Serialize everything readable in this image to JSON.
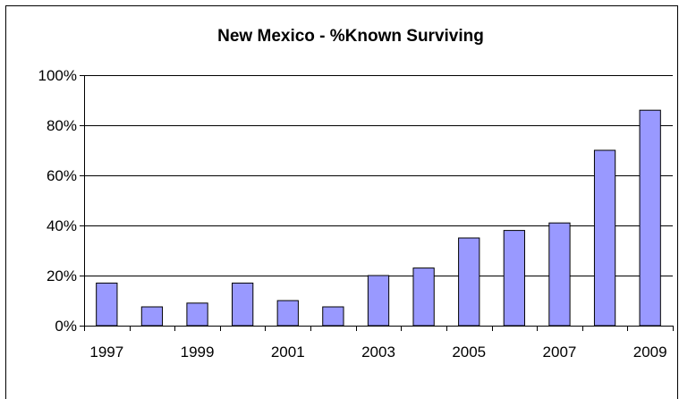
{
  "chart_data": {
    "type": "bar",
    "title": "New Mexico - %Known Surviving",
    "xlabel": "",
    "ylabel": "",
    "categories": [
      "1997",
      "1998",
      "1999",
      "2000",
      "2001",
      "2002",
      "2003",
      "2004",
      "2005",
      "2006",
      "2007",
      "2008",
      "2009"
    ],
    "x_tick_labels": [
      "1997",
      "",
      "1999",
      "",
      "2001",
      "",
      "2003",
      "",
      "2005",
      "",
      "2007",
      "",
      "2009"
    ],
    "values": [
      17,
      7.5,
      9,
      17,
      10,
      7.5,
      20,
      23,
      35,
      38,
      41,
      70,
      86
    ],
    "ylim": [
      0,
      100
    ],
    "y_ticks": [
      0,
      20,
      40,
      60,
      80,
      100
    ],
    "y_tick_labels": [
      "0%",
      "20%",
      "40%",
      "60%",
      "80%",
      "100%"
    ],
    "grid": true,
    "legend": "none",
    "colors": {
      "bar_fill": "#9999ff",
      "bar_stroke": "#000000",
      "grid": "#000000",
      "axis": "#000000"
    }
  }
}
